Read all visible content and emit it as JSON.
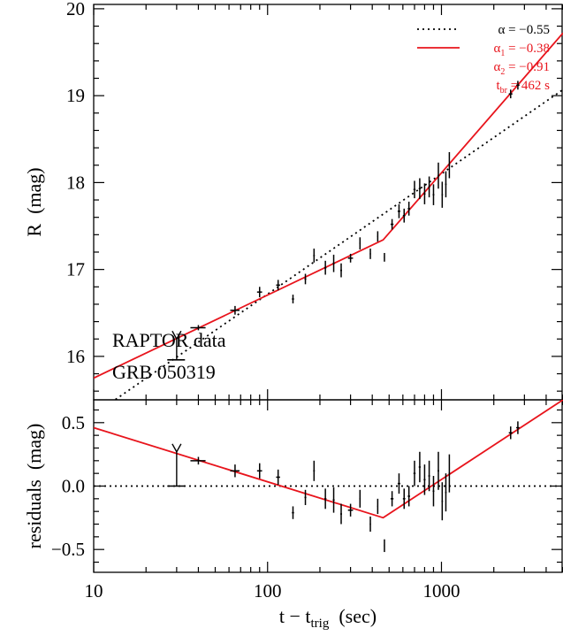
{
  "chart_data": [
    {
      "panel": "top",
      "type": "scatter",
      "ylabel": "R  (mag)",
      "xscale": "log",
      "xlim": [
        10,
        5000
      ],
      "ylim": [
        20.05,
        15.5
      ],
      "yticks": [
        16,
        17,
        18,
        19,
        20
      ],
      "annotations": [
        "RAPTOR data",
        "GRB 050319"
      ],
      "points": [
        {
          "x": 40,
          "y": 16.33,
          "xerr_lo": 4,
          "xerr_hi": 4,
          "yerr": 0.03
        },
        {
          "x": 65,
          "y": 16.53,
          "xerr_lo": 4,
          "xerr_hi": 4,
          "yerr": 0.05
        },
        {
          "x": 90,
          "y": 16.74,
          "xerr_lo": 3,
          "xerr_hi": 3,
          "yerr": 0.06
        },
        {
          "x": 115,
          "y": 16.82,
          "xerr_lo": 3,
          "xerr_hi": 3,
          "yerr": 0.06
        },
        {
          "x": 140,
          "y": 16.66,
          "xerr_lo": 2,
          "xerr_hi": 2,
          "yerr": 0.05
        },
        {
          "x": 165,
          "y": 16.89,
          "xerr_lo": 2,
          "xerr_hi": 2,
          "yerr": 0.06
        },
        {
          "x": 185,
          "y": 17.16,
          "xerr_lo": 2,
          "xerr_hi": 2,
          "yerr": 0.08
        },
        {
          "x": 215,
          "y": 17.02,
          "xerr_lo": 3,
          "xerr_hi": 3,
          "yerr": 0.08
        },
        {
          "x": 240,
          "y": 17.07,
          "xerr_lo": 3,
          "xerr_hi": 3,
          "yerr": 0.1
        },
        {
          "x": 265,
          "y": 16.99,
          "xerr_lo": 3,
          "xerr_hi": 3,
          "yerr": 0.08
        },
        {
          "x": 300,
          "y": 17.13,
          "xerr_lo": 10,
          "xerr_hi": 10,
          "yerr": 0.05
        },
        {
          "x": 340,
          "y": 17.3,
          "xerr_lo": 3,
          "xerr_hi": 3,
          "yerr": 0.07
        },
        {
          "x": 390,
          "y": 17.18,
          "xerr_lo": 3,
          "xerr_hi": 3,
          "yerr": 0.06
        },
        {
          "x": 430,
          "y": 17.38,
          "xerr_lo": 3,
          "xerr_hi": 3,
          "yerr": 0.06
        },
        {
          "x": 470,
          "y": 17.14,
          "xerr_lo": 3,
          "xerr_hi": 3,
          "yerr": 0.05
        },
        {
          "x": 520,
          "y": 17.52,
          "xerr_lo": 10,
          "xerr_hi": 10,
          "yerr": 0.06
        },
        {
          "x": 570,
          "y": 17.67,
          "xerr_lo": 10,
          "xerr_hi": 10,
          "yerr": 0.08
        },
        {
          "x": 610,
          "y": 17.62,
          "xerr_lo": 10,
          "xerr_hi": 10,
          "yerr": 0.08
        },
        {
          "x": 650,
          "y": 17.7,
          "xerr_lo": 10,
          "xerr_hi": 10,
          "yerr": 0.08
        },
        {
          "x": 700,
          "y": 17.92,
          "xerr_lo": 10,
          "xerr_hi": 10,
          "yerr": 0.1
        },
        {
          "x": 750,
          "y": 17.93,
          "xerr_lo": 10,
          "xerr_hi": 10,
          "yerr": 0.12
        },
        {
          "x": 800,
          "y": 17.87,
          "xerr_lo": 10,
          "xerr_hi": 10,
          "yerr": 0.12
        },
        {
          "x": 850,
          "y": 17.95,
          "xerr_lo": 10,
          "xerr_hi": 10,
          "yerr": 0.12
        },
        {
          "x": 900,
          "y": 17.86,
          "xerr_lo": 10,
          "xerr_hi": 10,
          "yerr": 0.12
        },
        {
          "x": 960,
          "y": 18.08,
          "xerr_lo": 10,
          "xerr_hi": 10,
          "yerr": 0.15
        },
        {
          "x": 1010,
          "y": 17.86,
          "xerr_lo": 10,
          "xerr_hi": 10,
          "yerr": 0.15
        },
        {
          "x": 1060,
          "y": 17.98,
          "xerr_lo": 10,
          "xerr_hi": 10,
          "yerr": 0.15
        },
        {
          "x": 1110,
          "y": 18.2,
          "xerr_lo": 10,
          "xerr_hi": 10,
          "yerr": 0.15
        },
        {
          "x": 2500,
          "y": 19.02,
          "xerr_lo": 60,
          "xerr_hi": 60,
          "yerr": 0.05
        },
        {
          "x": 2750,
          "y": 19.12,
          "xerr_lo": 60,
          "xerr_hi": 60,
          "yerr": 0.05
        }
      ],
      "upper_limits": [
        {
          "x": 30,
          "y": 15.96,
          "xerr_lo": 3.5,
          "xerr_hi": 3.5,
          "arrow_to": 16.2
        }
      ],
      "series": [
        {
          "name": "α = −0.55",
          "color": "#000000",
          "linestyle": "dotted",
          "x": [
            10,
            5000
          ],
          "y": [
            15.33,
            19.07
          ]
        },
        {
          "name": "α₁ = −0.38",
          "color": "#e8141c",
          "linestyle": "solid",
          "x": [
            10,
            462,
            5000
          ],
          "y": [
            15.75,
            17.34,
            19.72
          ]
        }
      ],
      "legend": {
        "placement": "top-right",
        "entries": [
          {
            "text": "α = −0.55",
            "sym": "α",
            "rest": " = −0.55",
            "color": "#000000",
            "style": "dotted"
          },
          {
            "text": "α₁ = −0.38",
            "sym": "α",
            "sub": "1",
            "rest": " = −0.38",
            "color": "#e8141c",
            "style": "solid"
          },
          {
            "text": "α₂ = −0.91",
            "sym": "α",
            "sub": "2",
            "rest": " = −0.91",
            "color": "#e8141c",
            "style": "none"
          },
          {
            "text": "t_br = 462 s",
            "sym": "t",
            "sub": "br",
            "rest": " = 462 s",
            "color": "#e8141c",
            "style": "none"
          }
        ]
      }
    },
    {
      "panel": "bottom",
      "type": "scatter",
      "ylabel": "residuals  (mag)",
      "xlabel": "t − t_trig  (sec)",
      "xlabel_parts": {
        "main": "t − t",
        "sub": "trig",
        "rest": "  (sec)"
      },
      "xscale": "log",
      "xlim": [
        10,
        5000
      ],
      "ylim": [
        0.68,
        -0.68
      ],
      "yticks": [
        -0.5,
        0.0,
        0.5
      ],
      "ytick_labels": [
        "−0.5",
        "0.0",
        "0.5"
      ],
      "xticks": [
        10,
        100,
        1000
      ],
      "xtick_labels": [
        "10",
        "100",
        "1000"
      ],
      "points": [
        {
          "x": 40,
          "y": 0.2,
          "xerr_lo": 4,
          "xerr_hi": 4,
          "yerr": 0.03
        },
        {
          "x": 65,
          "y": 0.12,
          "xerr_lo": 4,
          "xerr_hi": 4,
          "yerr": 0.05
        },
        {
          "x": 90,
          "y": 0.12,
          "xerr_lo": 3,
          "xerr_hi": 3,
          "yerr": 0.06
        },
        {
          "x": 115,
          "y": 0.07,
          "xerr_lo": 3,
          "xerr_hi": 3,
          "yerr": 0.06
        },
        {
          "x": 140,
          "y": -0.21,
          "xerr_lo": 2,
          "xerr_hi": 2,
          "yerr": 0.05
        },
        {
          "x": 165,
          "y": -0.09,
          "xerr_lo": 2,
          "xerr_hi": 2,
          "yerr": 0.06
        },
        {
          "x": 185,
          "y": 0.12,
          "xerr_lo": 2,
          "xerr_hi": 2,
          "yerr": 0.08
        },
        {
          "x": 215,
          "y": -0.1,
          "xerr_lo": 3,
          "xerr_hi": 3,
          "yerr": 0.08
        },
        {
          "x": 240,
          "y": -0.11,
          "xerr_lo": 3,
          "xerr_hi": 3,
          "yerr": 0.1
        },
        {
          "x": 265,
          "y": -0.22,
          "xerr_lo": 3,
          "xerr_hi": 3,
          "yerr": 0.08
        },
        {
          "x": 300,
          "y": -0.19,
          "xerr_lo": 10,
          "xerr_hi": 10,
          "yerr": 0.05
        },
        {
          "x": 340,
          "y": -0.1,
          "xerr_lo": 3,
          "xerr_hi": 3,
          "yerr": 0.07
        },
        {
          "x": 390,
          "y": -0.3,
          "xerr_lo": 3,
          "xerr_hi": 3,
          "yerr": 0.06
        },
        {
          "x": 430,
          "y": -0.16,
          "xerr_lo": 3,
          "xerr_hi": 3,
          "yerr": 0.06
        },
        {
          "x": 470,
          "y": -0.47,
          "xerr_lo": 3,
          "xerr_hi": 3,
          "yerr": 0.05
        },
        {
          "x": 520,
          "y": -0.1,
          "xerr_lo": 10,
          "xerr_hi": 10,
          "yerr": 0.06
        },
        {
          "x": 570,
          "y": 0.02,
          "xerr_lo": 10,
          "xerr_hi": 10,
          "yerr": 0.08
        },
        {
          "x": 610,
          "y": -0.1,
          "xerr_lo": 10,
          "xerr_hi": 10,
          "yerr": 0.08
        },
        {
          "x": 650,
          "y": -0.08,
          "xerr_lo": 10,
          "xerr_hi": 10,
          "yerr": 0.08
        },
        {
          "x": 700,
          "y": 0.1,
          "xerr_lo": 10,
          "xerr_hi": 10,
          "yerr": 0.1
        },
        {
          "x": 750,
          "y": 0.15,
          "xerr_lo": 10,
          "xerr_hi": 10,
          "yerr": 0.12
        },
        {
          "x": 800,
          "y": 0.05,
          "xerr_lo": 10,
          "xerr_hi": 10,
          "yerr": 0.12
        },
        {
          "x": 850,
          "y": 0.08,
          "xerr_lo": 10,
          "xerr_hi": 10,
          "yerr": 0.12
        },
        {
          "x": 900,
          "y": -0.04,
          "xerr_lo": 10,
          "xerr_hi": 10,
          "yerr": 0.12
        },
        {
          "x": 960,
          "y": 0.12,
          "xerr_lo": 10,
          "xerr_hi": 10,
          "yerr": 0.15
        },
        {
          "x": 1010,
          "y": -0.12,
          "xerr_lo": 10,
          "xerr_hi": 10,
          "yerr": 0.15
        },
        {
          "x": 1060,
          "y": -0.05,
          "xerr_lo": 10,
          "xerr_hi": 10,
          "yerr": 0.15
        },
        {
          "x": 1110,
          "y": 0.1,
          "xerr_lo": 10,
          "xerr_hi": 10,
          "yerr": 0.15
        },
        {
          "x": 2500,
          "y": 0.42,
          "xerr_lo": 60,
          "xerr_hi": 60,
          "yerr": 0.05
        },
        {
          "x": 2750,
          "y": 0.46,
          "xerr_lo": 60,
          "xerr_hi": 60,
          "yerr": 0.05
        }
      ],
      "upper_limits": [
        {
          "x": 30,
          "y": 0.0,
          "xerr_lo": 3.5,
          "xerr_hi": 3.5,
          "arrow_to": 0.27
        }
      ],
      "series": [
        {
          "name": "",
          "color": "#000000",
          "linestyle": "dotted",
          "x": [
            10,
            5000
          ],
          "y": [
            0.0,
            0.0
          ]
        },
        {
          "name": "",
          "color": "#e8141c",
          "linestyle": "solid",
          "x": [
            10,
            462,
            5000
          ],
          "y": [
            0.46,
            -0.25,
            0.68
          ]
        }
      ]
    }
  ]
}
